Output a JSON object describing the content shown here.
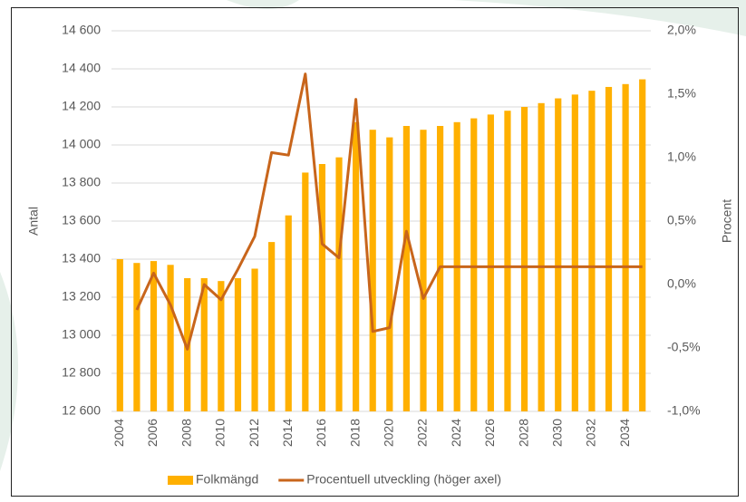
{
  "chart_data": {
    "type": "combo",
    "categories": [
      "2004",
      null,
      "2006",
      null,
      "2008",
      null,
      "2010",
      null,
      "2012",
      null,
      "2014",
      null,
      "2016",
      null,
      "2018",
      null,
      "2020",
      null,
      "2022",
      null,
      "2024",
      null,
      "2026",
      null,
      "2028",
      null,
      "2030",
      null,
      "2032",
      null,
      "2034",
      null
    ],
    "series": [
      {
        "name": "Folkmängd",
        "type": "bar",
        "color": "#ffb000",
        "values": [
          13400,
          13380,
          13390,
          13370,
          13300,
          13300,
          13285,
          13300,
          13350,
          13490,
          13630,
          13855,
          13900,
          13935,
          14120,
          14080,
          14040,
          14100,
          14080,
          14100,
          14120,
          14140,
          14160,
          14180,
          14200,
          14220,
          14245,
          14265,
          14285,
          14305,
          14320,
          14345
        ]
      },
      {
        "name": "Procentuell utveckling (höger axel)",
        "type": "line",
        "axis": "y2",
        "color": "#c8651b",
        "values": [
          null,
          -0.2,
          0.09,
          -0.16,
          -0.51,
          0.0,
          -0.12,
          0.12,
          0.38,
          1.04,
          1.02,
          1.66,
          0.32,
          0.21,
          1.46,
          -0.37,
          -0.34,
          0.42,
          -0.11,
          0.14,
          0.14,
          0.14,
          0.14,
          0.14,
          0.14,
          0.14,
          0.14,
          0.14,
          0.14,
          0.14,
          0.14,
          0.14
        ]
      }
    ],
    "ylabel": "Antal",
    "y2label": "Procent",
    "ylim": [
      12600,
      14600
    ],
    "yticks": [
      {
        "value": 12600,
        "label": "12 600"
      },
      {
        "value": 12800,
        "label": "12 800"
      },
      {
        "value": 13000,
        "label": "13 000"
      },
      {
        "value": 13200,
        "label": "13 200"
      },
      {
        "value": 13400,
        "label": "13 400"
      },
      {
        "value": 13600,
        "label": "13 600"
      },
      {
        "value": 13800,
        "label": "13 800"
      },
      {
        "value": 14000,
        "label": "14 000"
      },
      {
        "value": 14200,
        "label": "14 200"
      },
      {
        "value": 14400,
        "label": "14 400"
      },
      {
        "value": 14600,
        "label": "14 600"
      }
    ],
    "y2lim": [
      -1.0,
      2.0
    ],
    "y2ticks": [
      {
        "value": -1.0,
        "label": "-1,0%"
      },
      {
        "value": -0.5,
        "label": "-0,5%"
      },
      {
        "value": 0.0,
        "label": "0,0%"
      },
      {
        "value": 0.5,
        "label": "0,5%"
      },
      {
        "value": 1.0,
        "label": "1,0%"
      },
      {
        "value": 1.5,
        "label": "1,5%"
      },
      {
        "value": 2.0,
        "label": "2,0%"
      }
    ],
    "grid": true,
    "legend": "bottom"
  }
}
